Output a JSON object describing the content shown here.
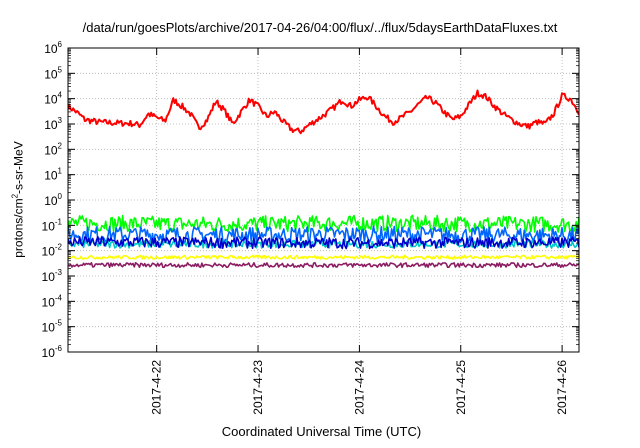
{
  "chart_data": {
    "type": "line",
    "title": "/data/run/goesPlots/archive/2017-04-26/04:00/flux/../flux/5daysEarthDataFluxes.txt",
    "xlabel": "Coordinated Universal Time (UTC)",
    "ylabel_parts": {
      "pre": "protons/cm",
      "sup": "2",
      "post": "-s-sr-MeV"
    },
    "yscale": "log",
    "ylim": [
      1e-06,
      1000000.0
    ],
    "y_tick_labels": [
      {
        "base": "10",
        "exp": "-6"
      },
      {
        "base": "10",
        "exp": "-5"
      },
      {
        "base": "10",
        "exp": "-4"
      },
      {
        "base": "10",
        "exp": "-3"
      },
      {
        "base": "10",
        "exp": "-2"
      },
      {
        "base": "10",
        "exp": "-1"
      },
      {
        "base": "10",
        "exp": "0"
      },
      {
        "base": "10",
        "exp": "1"
      },
      {
        "base": "10",
        "exp": "2"
      },
      {
        "base": "10",
        "exp": "3"
      },
      {
        "base": "10",
        "exp": "4"
      },
      {
        "base": "10",
        "exp": "5"
      },
      {
        "base": "10",
        "exp": "6"
      }
    ],
    "x_range": [
      "2017-04-21T03:00",
      "2017-04-26T04:00"
    ],
    "x_ticks": [
      {
        "label": "2017-4-22",
        "date": "2017-04-22"
      },
      {
        "label": "2017-4-23",
        "date": "2017-04-23"
      },
      {
        "label": "2017-4-24",
        "date": "2017-04-24"
      },
      {
        "label": "2017-4-25",
        "date": "2017-04-25"
      },
      {
        "label": "2017-4-26",
        "date": "2017-04-26"
      }
    ],
    "grid": true,
    "legend": "none",
    "series": [
      {
        "color": "#ff0000",
        "noise": 0.12,
        "points": [
          [
            "2017-04-21T03:00",
            5000
          ],
          [
            "2017-04-21T05:00",
            3000
          ],
          [
            "2017-04-21T07:00",
            1500
          ],
          [
            "2017-04-21T10:00",
            1200
          ],
          [
            "2017-04-21T14:00",
            1100
          ],
          [
            "2017-04-21T18:00",
            1050
          ],
          [
            "2017-04-21T20:00",
            900
          ],
          [
            "2017-04-21T22:00",
            2500
          ],
          [
            "2017-04-22T00:00",
            1800
          ],
          [
            "2017-04-22T02:00",
            1300
          ],
          [
            "2017-04-22T04:00",
            9000
          ],
          [
            "2017-04-22T06:00",
            5000
          ],
          [
            "2017-04-22T08:00",
            2500
          ],
          [
            "2017-04-22T10:00",
            700
          ],
          [
            "2017-04-22T12:00",
            1500
          ],
          [
            "2017-04-22T14:00",
            8000
          ],
          [
            "2017-04-22T16:00",
            3500
          ],
          [
            "2017-04-22T18:00",
            1000
          ],
          [
            "2017-04-22T20:00",
            3000
          ],
          [
            "2017-04-22T22:00",
            9000
          ],
          [
            "2017-04-23T00:00",
            5000
          ],
          [
            "2017-04-23T02:00",
            2000
          ],
          [
            "2017-04-23T04:00",
            3000
          ],
          [
            "2017-04-23T06:00",
            1200
          ],
          [
            "2017-04-23T08:00",
            600
          ],
          [
            "2017-04-23T10:00",
            500
          ],
          [
            "2017-04-23T12:00",
            900
          ],
          [
            "2017-04-23T14:00",
            1500
          ],
          [
            "2017-04-23T16:00",
            2500
          ],
          [
            "2017-04-23T18:00",
            4500
          ],
          [
            "2017-04-23T20:00",
            9000
          ],
          [
            "2017-04-23T22:00",
            5000
          ],
          [
            "2017-04-24T00:00",
            9000
          ],
          [
            "2017-04-24T02:00",
            12000
          ],
          [
            "2017-04-24T04:00",
            5000
          ],
          [
            "2017-04-24T06:00",
            2000
          ],
          [
            "2017-04-24T08:00",
            1200
          ],
          [
            "2017-04-24T10:00",
            1800
          ],
          [
            "2017-04-24T12:00",
            3000
          ],
          [
            "2017-04-24T14:00",
            6000
          ],
          [
            "2017-04-24T16:00",
            11000
          ],
          [
            "2017-04-24T18:00",
            7000
          ],
          [
            "2017-04-24T20:00",
            3000
          ],
          [
            "2017-04-24T22:00",
            1500
          ],
          [
            "2017-04-25T00:00",
            2000
          ],
          [
            "2017-04-25T02:00",
            6000
          ],
          [
            "2017-04-25T04:00",
            17000
          ],
          [
            "2017-04-25T06:00",
            12000
          ],
          [
            "2017-04-25T08:00",
            5000
          ],
          [
            "2017-04-25T10:00",
            2500
          ],
          [
            "2017-04-25T12:00",
            1500
          ],
          [
            "2017-04-25T14:00",
            1000
          ],
          [
            "2017-04-25T16:00",
            800
          ],
          [
            "2017-04-25T18:00",
            1200
          ],
          [
            "2017-04-25T20:00",
            1000
          ],
          [
            "2017-04-25T22:00",
            2500
          ],
          [
            "2017-04-26T00:00",
            13000
          ],
          [
            "2017-04-26T02:00",
            10000
          ],
          [
            "2017-04-26T04:00",
            3000
          ]
        ]
      },
      {
        "color": "#00ff00",
        "noise": 0.32,
        "points": [
          [
            "2017-04-21T03:00",
            0.12
          ],
          [
            "2017-04-22T12:00",
            0.11
          ],
          [
            "2017-04-24T00:00",
            0.12
          ],
          [
            "2017-04-26T04:00",
            0.11
          ]
        ]
      },
      {
        "color": "#0066ff",
        "noise": 0.32,
        "points": [
          [
            "2017-04-21T03:00",
            0.045
          ],
          [
            "2017-04-22T12:00",
            0.042
          ],
          [
            "2017-04-24T00:00",
            0.045
          ],
          [
            "2017-04-26T04:00",
            0.04
          ]
        ]
      },
      {
        "color": "#00c8c8",
        "noise": 0.15,
        "points": [
          [
            "2017-04-21T03:00",
            0.018
          ],
          [
            "2017-04-26T04:00",
            0.018
          ]
        ]
      },
      {
        "color": "#0000cc",
        "noise": 0.22,
        "points": [
          [
            "2017-04-21T03:00",
            0.022
          ],
          [
            "2017-04-23T12:00",
            0.02
          ],
          [
            "2017-04-26T04:00",
            0.021
          ]
        ]
      },
      {
        "color": "#ffff00",
        "noise": 0.07,
        "points": [
          [
            "2017-04-21T03:00",
            0.0055
          ],
          [
            "2017-04-26T04:00",
            0.0055
          ]
        ]
      },
      {
        "color": "#8b1c62",
        "noise": 0.09,
        "points": [
          [
            "2017-04-21T03:00",
            0.0027
          ],
          [
            "2017-04-26T04:00",
            0.0027
          ]
        ]
      }
    ]
  }
}
